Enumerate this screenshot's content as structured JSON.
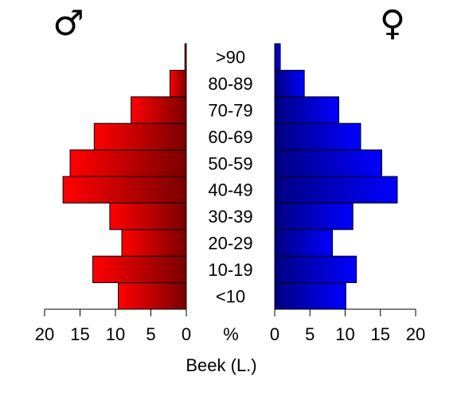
{
  "chart_data": {
    "type": "bar",
    "orientation": "horizontal",
    "subtype": "population pyramid",
    "categories": [
      "<10",
      "10-19",
      "20-29",
      "30-39",
      "40-49",
      "50-59",
      "60-69",
      "70-79",
      "80-89",
      ">90"
    ],
    "series": [
      {
        "name": "♂",
        "values": [
          9.6,
          13.2,
          9.1,
          10.8,
          17.4,
          16.4,
          13.0,
          7.8,
          2.3,
          0.2
        ],
        "color_start": "#ff0000",
        "color_end": "#7a0000"
      },
      {
        "name": "♀",
        "values": [
          10.1,
          11.6,
          8.2,
          11.1,
          17.4,
          15.2,
          12.2,
          9.1,
          4.2,
          0.8
        ],
        "color_start": "#000080",
        "color_end": "#0000ff"
      }
    ],
    "xlabel": "Beek (L.)",
    "unit_label": "%",
    "xlim": [
      0,
      20
    ],
    "xticks": [
      0,
      5,
      10,
      15,
      20
    ],
    "male_symbol": "♂",
    "female_symbol": "♀"
  }
}
